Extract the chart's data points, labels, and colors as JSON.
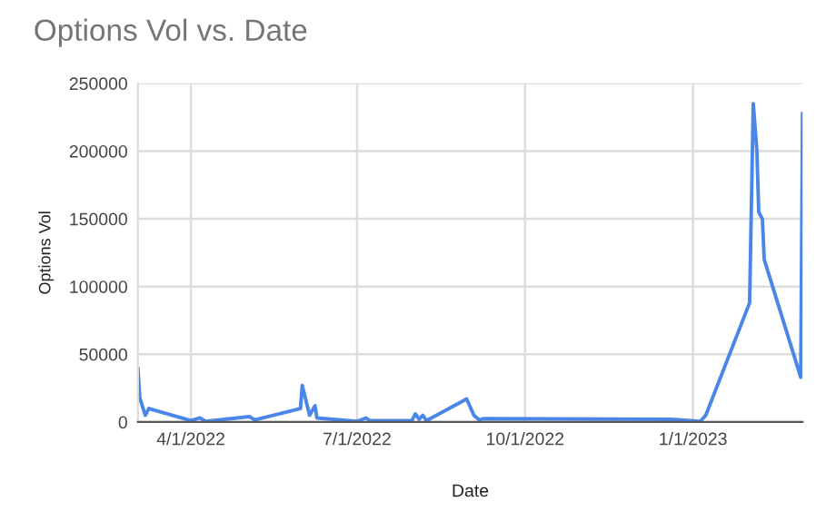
{
  "chart_data": {
    "type": "line",
    "title": "Options Vol vs. Date",
    "xlabel": "Date",
    "ylabel": "Options Vol",
    "x": [
      "2022-03-03",
      "2022-03-04",
      "2022-03-07",
      "2022-03-09",
      "2022-04-01",
      "2022-04-06",
      "2022-04-09",
      "2022-05-03",
      "2022-05-06",
      "2022-05-31",
      "2022-06-01",
      "2022-06-05",
      "2022-06-08",
      "2022-06-09",
      "2022-07-01",
      "2022-07-06",
      "2022-07-08",
      "2022-07-31",
      "2022-08-02",
      "2022-08-04",
      "2022-08-06",
      "2022-08-08",
      "2022-08-30",
      "2022-09-03",
      "2022-09-06",
      "2022-09-08",
      "2022-12-20",
      "2023-01-05",
      "2023-01-08",
      "2023-02-01",
      "2023-02-03",
      "2023-02-05",
      "2023-02-06",
      "2023-02-08",
      "2023-02-09",
      "2023-03-01",
      "2023-03-02"
    ],
    "series": [
      {
        "color": "#4a86e8",
        "values": [
          40000,
          18000,
          5000,
          10000,
          1000,
          3000,
          500,
          4000,
          1500,
          10000,
          27000,
          5000,
          12000,
          3000,
          500,
          3000,
          1000,
          1000,
          6000,
          2000,
          5000,
          1000,
          17000,
          5000,
          1500,
          2500,
          2000,
          500,
          5000,
          88000,
          235000,
          200000,
          155000,
          150000,
          120000,
          33000,
          228000
        ]
      }
    ],
    "xlim": [
      "2022-03-03",
      "2023-03-02"
    ],
    "xticks": [
      {
        "value": "2022-04-01",
        "label": "4/1/2022"
      },
      {
        "value": "2022-07-01",
        "label": "7/1/2022"
      },
      {
        "value": "2022-10-01",
        "label": "10/1/2022"
      },
      {
        "value": "2023-01-01",
        "label": "1/1/2023"
      }
    ],
    "ylim": [
      0,
      250000
    ],
    "yticks": [
      0,
      50000,
      100000,
      150000,
      200000,
      250000
    ],
    "grid": true,
    "marker": "none",
    "line_style": "solid"
  }
}
